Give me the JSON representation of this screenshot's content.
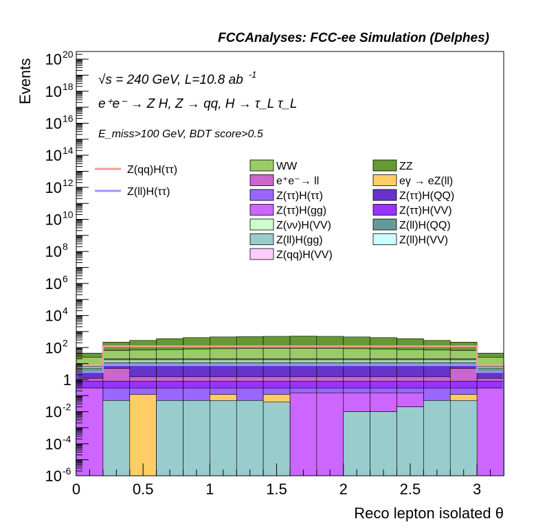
{
  "header": "FCCAnalyses: FCC-ee Simulation (Delphes)",
  "annotations": {
    "line1": "√s = 240 GeV, L=10.8 ab",
    "line1_sup": "-1",
    "line2": "e⁺e⁻ → Z H, Z → qq, H → τ_L τ_L",
    "line3": "E_miss>100 GeV, BDT score>0.5"
  },
  "chart_data": {
    "type": "bar",
    "stacked": true,
    "y_scale": "log",
    "xlabel": "Reco lepton isolated θ",
    "ylabel": "Events",
    "xlim": [
      0,
      3.2
    ],
    "ylim": [
      1e-06,
      3e+20
    ],
    "x_ticks": [
      {
        "v": 0,
        "label": "0"
      },
      {
        "v": 0.5,
        "label": "0.5"
      },
      {
        "v": 1,
        "label": "1"
      },
      {
        "v": 1.5,
        "label": "1.5"
      },
      {
        "v": 2,
        "label": "2"
      },
      {
        "v": 2.5,
        "label": "2.5"
      },
      {
        "v": 3,
        "label": "3"
      }
    ],
    "y_ticks": [
      {
        "exp": -6,
        "label": "10",
        "sup": "-6"
      },
      {
        "exp": -4,
        "label": "10",
        "sup": "-4"
      },
      {
        "exp": -2,
        "label": "10",
        "sup": "-2"
      },
      {
        "exp": 0,
        "label": "1",
        "sup": ""
      },
      {
        "exp": 2,
        "label": "10",
        "sup": "2"
      },
      {
        "exp": 4,
        "label": "10",
        "sup": "4"
      },
      {
        "exp": 6,
        "label": "10",
        "sup": "6"
      },
      {
        "exp": 8,
        "label": "10",
        "sup": "8"
      },
      {
        "exp": 10,
        "label": "10",
        "sup": "10"
      },
      {
        "exp": 12,
        "label": "10",
        "sup": "12"
      },
      {
        "exp": 14,
        "label": "10",
        "sup": "14"
      },
      {
        "exp": 16,
        "label": "10",
        "sup": "16"
      },
      {
        "exp": 18,
        "label": "10",
        "sup": "18"
      },
      {
        "exp": 20,
        "label": "10",
        "sup": "20"
      }
    ],
    "bin_edges": [
      0,
      0.2,
      0.4,
      0.6,
      0.8,
      1.0,
      1.2,
      1.4,
      1.6,
      1.8,
      2.0,
      2.2,
      2.4,
      2.6,
      2.8,
      3.0,
      3.2
    ],
    "stack_tops": [
      {
        "name": "Z(ll)H(gg)",
        "color": "#99cccc",
        "values": [
          0,
          0.05,
          0,
          0.05,
          0.05,
          0.05,
          0.05,
          0.04,
          0,
          0,
          0.01,
          0.01,
          0.02,
          0.05,
          0.05,
          0
        ]
      },
      {
        "name": "eγ → eZ(ll)",
        "color": "#ffcc66",
        "values": [
          0,
          0.05,
          0.12,
          0.05,
          0.05,
          0.12,
          0.05,
          0.12,
          0,
          0,
          0.01,
          0.01,
          0.02,
          0.05,
          0.12,
          0
        ]
      },
      {
        "name": "Z(ττ)H(gg)",
        "color": "#cc66ff",
        "values": [
          0.3,
          0.05,
          0.12,
          0.05,
          0.05,
          0.12,
          0.05,
          0.12,
          0.15,
          0.15,
          0.15,
          0.15,
          0.15,
          0.05,
          0.12,
          0.3
        ]
      },
      {
        "name": "Z(ττ)H(ττ)",
        "color": "#9966ff",
        "values": [
          0.3,
          0.3,
          0.3,
          0.3,
          0.3,
          0.3,
          0.3,
          0.3,
          0.3,
          0.3,
          0.3,
          0.3,
          0.3,
          0.3,
          0.3,
          0.3
        ]
      },
      {
        "name": "Z(ττ)H(VV)",
        "color": "#9933ff",
        "values": [
          0.8,
          0.8,
          0.8,
          0.8,
          0.8,
          0.8,
          0.8,
          0.8,
          0.8,
          0.8,
          0.8,
          0.8,
          0.8,
          0.8,
          0.8,
          0.8
        ]
      },
      {
        "name": "e⁺e⁻→ ll",
        "color": "#cc66cc",
        "values": [
          1.2,
          5,
          1.5,
          1.5,
          1.5,
          1.5,
          1.5,
          1.5,
          1.5,
          1.5,
          1.5,
          1.5,
          1.5,
          1.5,
          5,
          1.2
        ]
      },
      {
        "name": "Z(ττ)H(QQ)",
        "color": "#6633cc",
        "values": [
          3,
          8,
          8,
          8,
          8,
          8,
          8,
          8,
          8,
          8,
          8,
          8,
          8,
          8,
          8,
          3
        ]
      },
      {
        "name": "Z(ll)H(QQ)",
        "color": "#669999",
        "values": [
          5,
          12,
          12,
          12,
          12,
          12,
          12,
          12,
          12,
          12,
          12,
          12,
          12,
          12,
          12,
          5
        ]
      },
      {
        "name": "Z(νν)H(VV)",
        "color": "#ccffcc",
        "values": [
          6,
          16,
          16,
          16,
          16,
          16,
          16,
          16,
          16,
          16,
          16,
          16,
          16,
          16,
          16,
          6
        ]
      },
      {
        "name": "Z(ll)H(VV)",
        "color": "#ccffff",
        "values": [
          7,
          18,
          18,
          18,
          18,
          18,
          18,
          18,
          18,
          18,
          18,
          18,
          18,
          18,
          18,
          7
        ]
      },
      {
        "name": "Z(qq)H(VV)",
        "color": "#ffccff",
        "values": [
          8,
          20,
          20,
          20,
          20,
          20,
          20,
          20,
          20,
          20,
          20,
          20,
          20,
          20,
          20,
          8
        ]
      },
      {
        "name": "WW",
        "color": "#99cc66",
        "values": [
          25,
          65,
          70,
          75,
          80,
          85,
          90,
          90,
          90,
          90,
          85,
          80,
          75,
          70,
          65,
          25
        ]
      },
      {
        "name": "ZZ",
        "color": "#669933",
        "values": [
          45,
          220,
          280,
          360,
          420,
          460,
          480,
          500,
          520,
          500,
          460,
          420,
          360,
          280,
          220,
          45
        ]
      }
    ],
    "series": [
      {
        "name": "Z(qq)H(ττ)",
        "color": "#ff9999",
        "values": [
          8,
          120,
          120,
          120,
          120,
          120,
          120,
          120,
          120,
          120,
          120,
          120,
          120,
          120,
          120,
          8
        ]
      },
      {
        "name": "Z(ll)H(ττ)",
        "color": "#9999ff",
        "values": [
          3,
          8,
          8,
          8,
          8,
          8,
          8,
          8,
          8,
          8,
          8,
          8,
          8,
          8,
          8,
          3
        ]
      }
    ],
    "legend_placement": "center",
    "legend_left": [
      "Z(qq)H(ττ)",
      "Z(ll)H(ττ)"
    ],
    "legend_col1": [
      "WW",
      "e⁺e⁻→ ll",
      "Z(ττ)H(ττ)",
      "Z(ττ)H(gg)",
      "Z(νν)H(VV)",
      "Z(ll)H(gg)",
      "Z(qq)H(VV)"
    ],
    "legend_col2": [
      "ZZ",
      "eγ → eZ(ll)",
      "Z(ττ)H(QQ)",
      "Z(ττ)H(VV)",
      "Z(ll)H(QQ)",
      "Z(ll)H(VV)"
    ]
  }
}
